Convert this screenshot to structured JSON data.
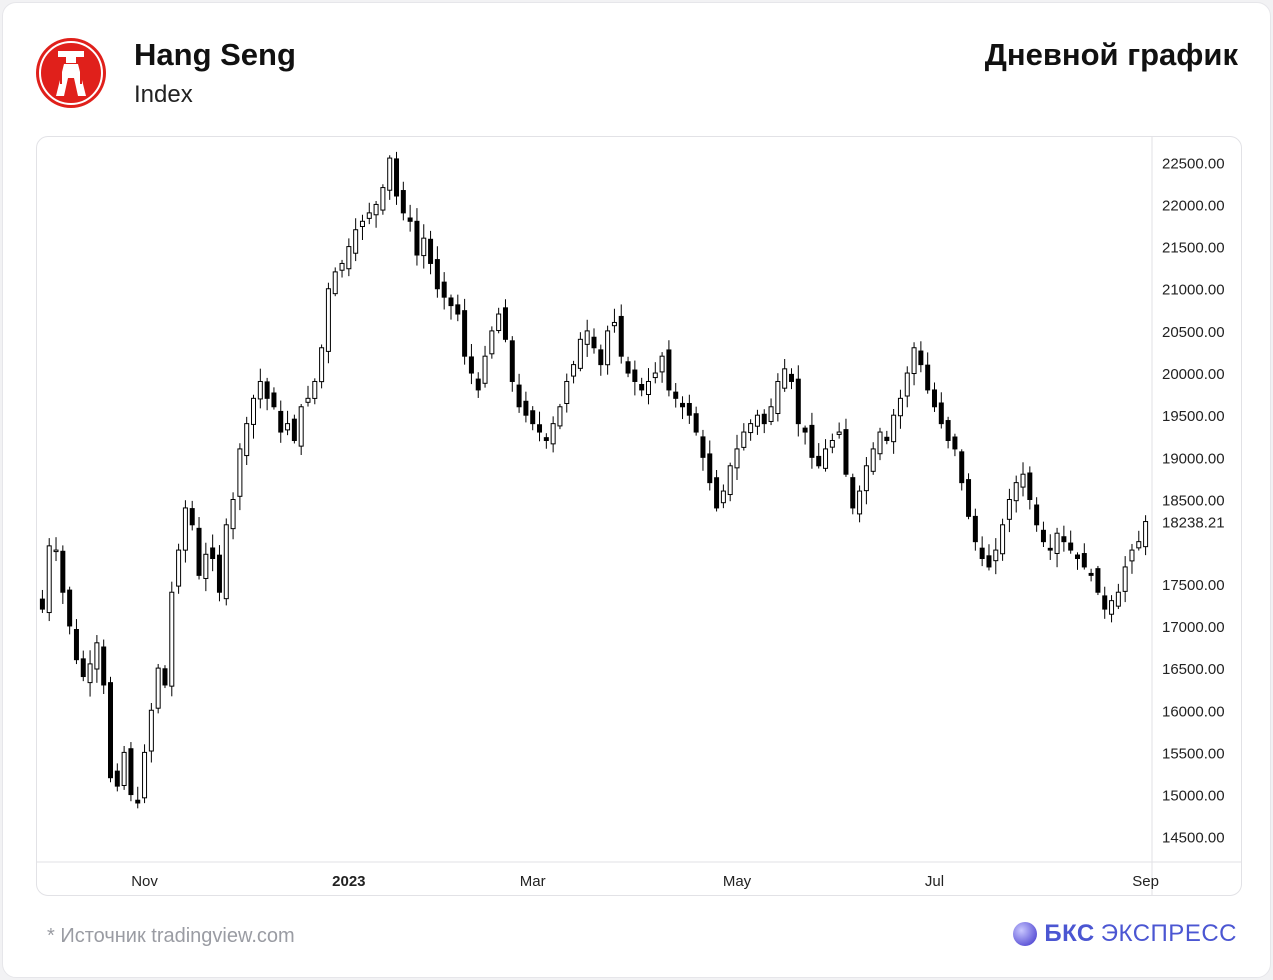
{
  "header": {
    "title": "Hang Seng",
    "subtitle": "Index",
    "chart_type_label": "Дневной график"
  },
  "footer": {
    "source": "*  Источник tradingview.com",
    "brand_bold": "БКС",
    "brand_rest": "ЭКСПРЕСС"
  },
  "colors": {
    "logo_red": "#e0201b",
    "brand_purple": "#4b56d2",
    "candle": "#000000"
  },
  "chart_data": {
    "type": "candlestick",
    "title": "",
    "xlabel": "",
    "ylabel": "",
    "ylim": [
      14200,
      22800
    ],
    "y_ticks": [
      "22500.00",
      "22000.00",
      "21500.00",
      "21000.00",
      "20500.00",
      "20000.00",
      "19500.00",
      "19000.00",
      "18500.00",
      "17500.00",
      "17000.00",
      "16500.00",
      "16000.00",
      "15500.00",
      "15000.00",
      "14500.00"
    ],
    "y_tick_values": [
      22500,
      22000,
      21500,
      21000,
      20500,
      20000,
      19500,
      19000,
      18500,
      17500,
      17000,
      16500,
      16000,
      15500,
      15000,
      14500
    ],
    "last_price_label": "18238.21",
    "last_price": 18238.21,
    "x_tick_labels": [
      "Nov",
      "2023",
      "Mar",
      "May",
      "Jul",
      "Sep"
    ],
    "x_tick_index": [
      15,
      45,
      72,
      102,
      131,
      162
    ],
    "close_path": [
      17200,
      17950,
      17900,
      17400,
      17000,
      16600,
      16400,
      16550,
      16800,
      16300,
      15200,
      15100,
      15500,
      15000,
      14900,
      15500,
      16000,
      16500,
      16300,
      17400,
      17900,
      18400,
      18200,
      17600,
      17850,
      17800,
      17400,
      18200,
      18500,
      19100,
      19400,
      19700,
      19900,
      19700,
      19600,
      19300,
      19400,
      19200,
      19600,
      19700,
      19900,
      20300,
      21000,
      21200,
      21300,
      21500,
      21700,
      21800,
      21900,
      22000,
      22200,
      22550,
      22100,
      21900,
      21800,
      21400,
      21600,
      21300,
      21000,
      20900,
      20800,
      20700,
      20200,
      20000,
      19800,
      20200,
      20500,
      20700,
      20400,
      19900,
      19600,
      19500,
      19400,
      19300,
      19200,
      19400,
      19600,
      19900,
      20100,
      20400,
      20500,
      20300,
      20100,
      20500,
      20600,
      20200,
      20000,
      19900,
      19800,
      19900,
      20000,
      20200,
      19800,
      19700,
      19600,
      19500,
      19300,
      19000,
      18700,
      18400,
      18600,
      18900,
      19100,
      19300,
      19400,
      19500,
      19400,
      19600,
      19900,
      20050,
      19900,
      19400,
      19300,
      19000,
      18900,
      19100,
      19200,
      19300,
      18800,
      18400,
      18600,
      18900,
      19100,
      19300,
      19200,
      19500,
      19700,
      20000,
      20300,
      20100,
      19800,
      19600,
      19400,
      19200,
      19100,
      18700,
      18300,
      18000,
      17800,
      17700,
      17900,
      18200,
      18500,
      18700,
      18800,
      18500,
      18200,
      18000,
      17900,
      18100,
      18000,
      17900,
      17800,
      17700,
      17600,
      17400,
      17200,
      17300,
      17400,
      17700,
      17900,
      18000,
      18238.21
    ]
  }
}
